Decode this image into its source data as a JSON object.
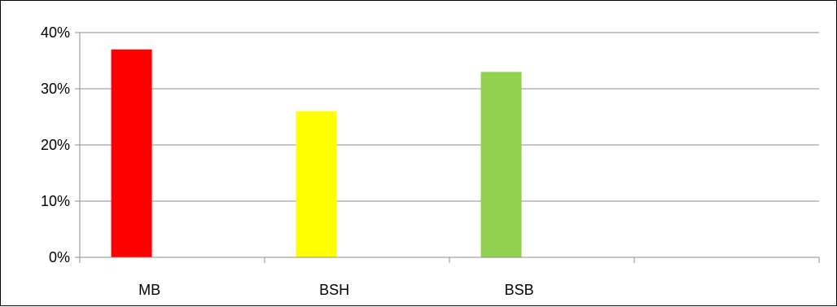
{
  "colors": {
    "grid": "#8c8c8c",
    "axis": "#8c8c8c",
    "text": "#000000"
  },
  "chart_data": {
    "type": "bar",
    "title": "",
    "xlabel": "",
    "ylabel": "",
    "categories": [
      "MB",
      "BSH",
      "BSB",
      ""
    ],
    "values": [
      37,
      26,
      33,
      null
    ],
    "bar_colors": [
      "#ff0000",
      "#ffff00",
      "#92d050",
      null
    ],
    "ylim": [
      0,
      40
    ],
    "y_ticks": [
      0,
      10,
      20,
      30,
      40
    ],
    "y_tick_labels": [
      "0%",
      "10%",
      "20%",
      "30%",
      "40%"
    ],
    "y_unit": "%",
    "grid": true,
    "legend": "none"
  }
}
